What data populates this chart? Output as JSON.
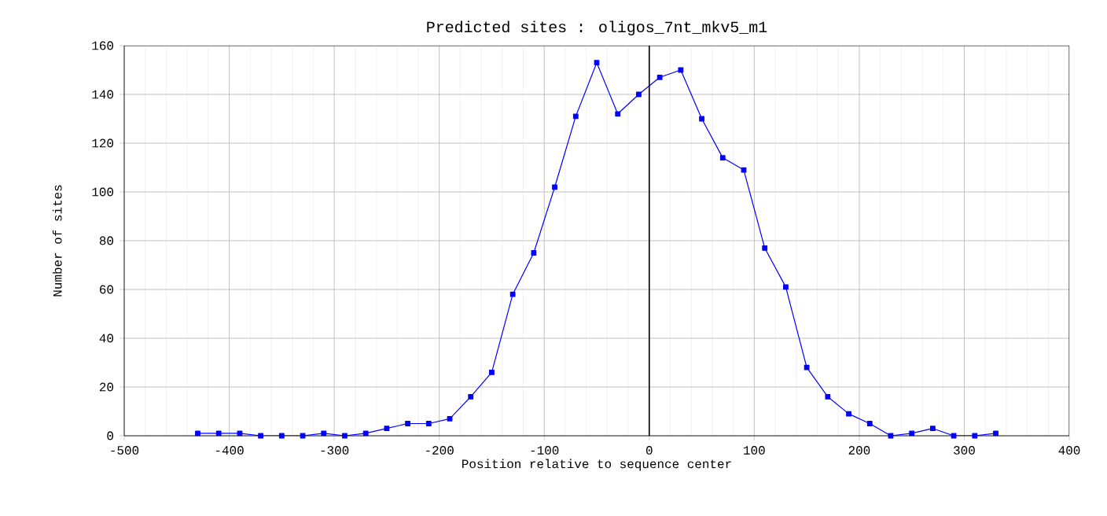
{
  "chart_data": {
    "type": "line",
    "title": "Predicted sites : oligos_7nt_mkv5_m1",
    "xlabel": "Position relative to sequence center",
    "ylabel": "Number of sites",
    "x": [
      -430,
      -410,
      -390,
      -370,
      -350,
      -330,
      -310,
      -290,
      -270,
      -250,
      -230,
      -210,
      -190,
      -170,
      -150,
      -130,
      -110,
      -90,
      -70,
      -50,
      -30,
      -10,
      10,
      30,
      50,
      70,
      90,
      110,
      130,
      150,
      170,
      190,
      210,
      230,
      250,
      270,
      290,
      310,
      330
    ],
    "series": [
      {
        "color": "#0000ff",
        "values": [
          1,
          1,
          1,
          0,
          0,
          0,
          1,
          0,
          1,
          3,
          5,
          5,
          7,
          16,
          26,
          58,
          75,
          102,
          131,
          153,
          132,
          140,
          147,
          150,
          130,
          114,
          109,
          77,
          61,
          28,
          16,
          9,
          5,
          0,
          1,
          3,
          0,
          0,
          1
        ]
      }
    ],
    "xlim": [
      -500,
      400
    ],
    "ylim": [
      0,
      160
    ],
    "xticks": [
      -500,
      -400,
      -300,
      -200,
      -100,
      0,
      100,
      200,
      300,
      400
    ],
    "yticks": [
      0,
      20,
      40,
      60,
      80,
      100,
      120,
      140,
      160
    ],
    "ref_lines": [
      {
        "axis": "x",
        "value": 0,
        "color": "#000000"
      }
    ],
    "grid": true,
    "marker": "square",
    "line_style": "solid"
  }
}
